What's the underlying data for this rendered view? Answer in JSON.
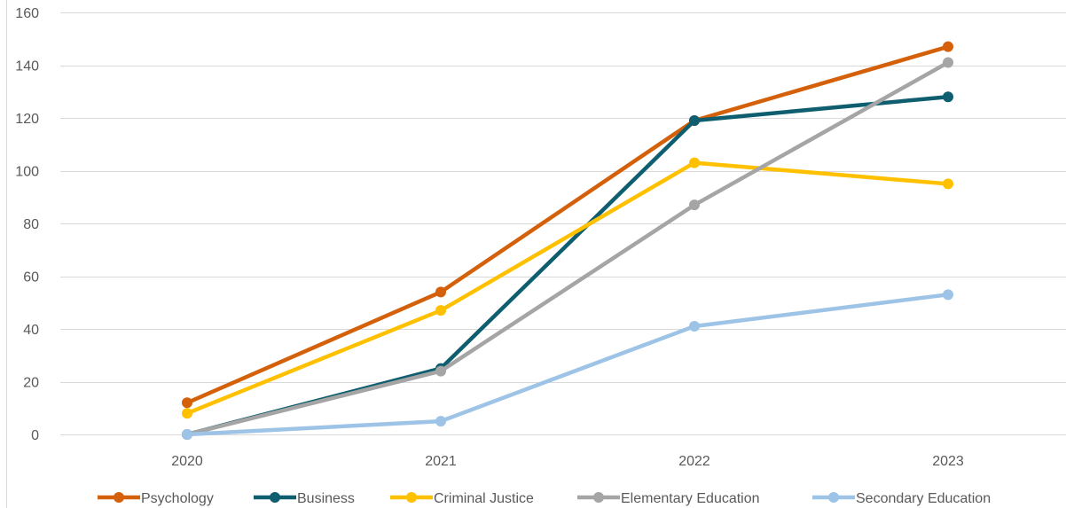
{
  "chart_data": {
    "type": "line",
    "title": "",
    "xlabel": "",
    "ylabel": "",
    "categories": [
      "2020",
      "2021",
      "2022",
      "2023"
    ],
    "ylim": [
      0,
      160
    ],
    "yticks": [
      0,
      20,
      40,
      60,
      80,
      100,
      120,
      140,
      160
    ],
    "grid": true,
    "legend_position": "bottom",
    "series": [
      {
        "name": "Psychology",
        "color": "#D4600A",
        "values": [
          12,
          54,
          119,
          147
        ]
      },
      {
        "name": "Business",
        "color": "#0E5E6F",
        "values": [
          0,
          25,
          119,
          128
        ]
      },
      {
        "name": "Criminal Justice",
        "color": "#FFC000",
        "values": [
          8,
          47,
          103,
          95
        ]
      },
      {
        "name": "Elementary Education",
        "color": "#A5A5A5",
        "values": [
          0,
          24,
          87,
          141
        ]
      },
      {
        "name": "Secondary Education",
        "color": "#9DC3E6",
        "values": [
          0,
          5,
          41,
          53
        ]
      }
    ]
  }
}
